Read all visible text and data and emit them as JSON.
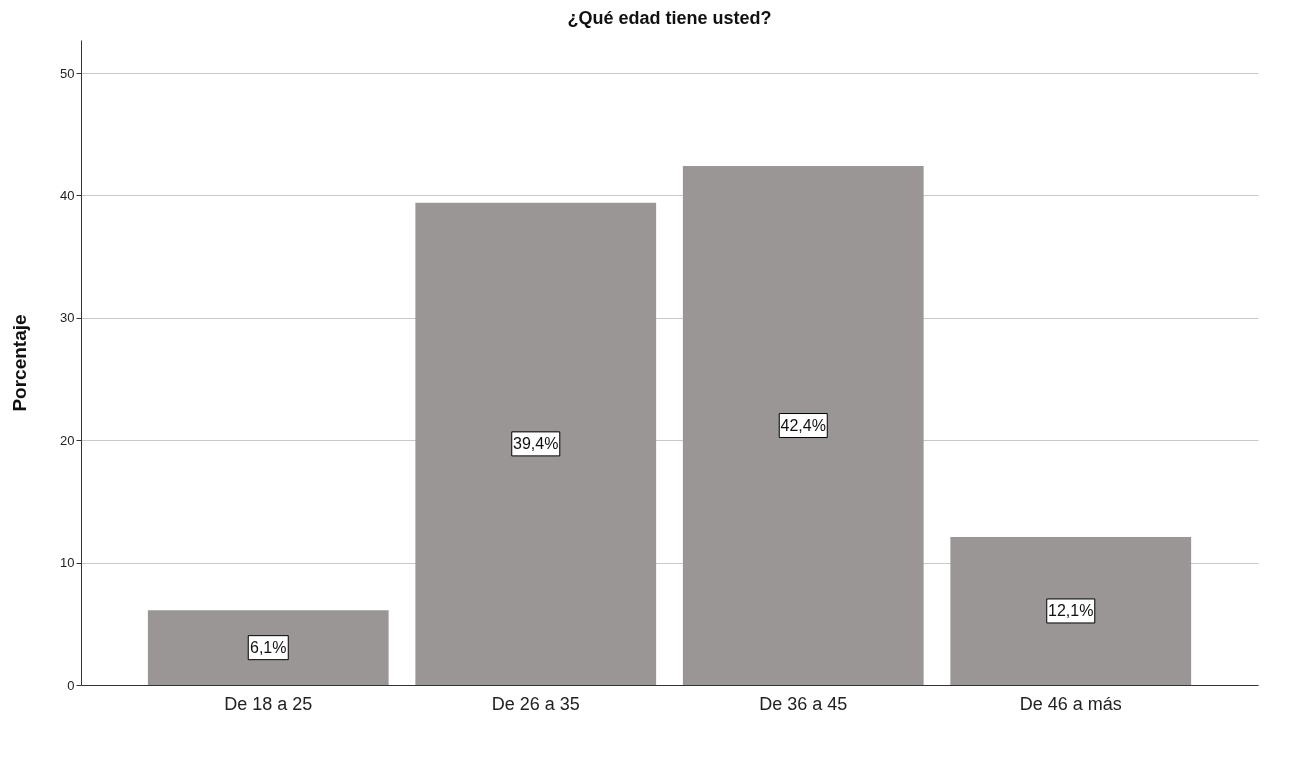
{
  "chart_data": {
    "type": "bar",
    "title": "¿Qué edad tiene usted?",
    "ylabel": "Porcentaje",
    "categories": [
      "De 18 a 25",
      "De 26 a 35",
      "De 36 a 45",
      "De 46 a más"
    ],
    "values": [
      6.1,
      39.4,
      42.4,
      12.1
    ],
    "value_labels": [
      "6,1%",
      "39,4%",
      "42,4%",
      "12,1%"
    ],
    "color": "#999695",
    "ylim": [
      0,
      52.7
    ],
    "yticks": [
      0,
      10,
      20,
      30,
      40,
      50
    ],
    "grid": "y"
  }
}
